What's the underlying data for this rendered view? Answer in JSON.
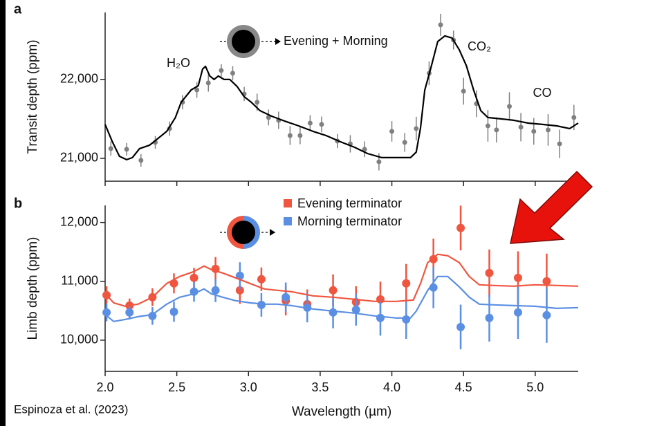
{
  "credit": "Espinoza et al. (2023)",
  "chart_data": [
    {
      "type": "scatter",
      "panel": "a",
      "ylabel": "Transit depth (ppm)",
      "xlim": [
        2.0,
        5.3
      ],
      "xticks": [
        2,
        2.5,
        3,
        3.5,
        4,
        4.5,
        5
      ],
      "ylim": [
        20710,
        22850
      ],
      "yticks": [
        {
          "value": 21000,
          "label": "21,000"
        },
        {
          "value": 22000,
          "label": "22,000"
        }
      ],
      "annotations": [
        "H₂O",
        "CO₂",
        "CO"
      ],
      "series": [
        {
          "name": "Evening + Morning",
          "color": "#808080",
          "model_color": "#000000",
          "x": [
            2.04,
            2.15,
            2.25,
            2.35,
            2.45,
            2.54,
            2.64,
            2.72,
            2.81,
            2.89,
            2.97,
            3.06,
            3.14,
            3.21,
            3.29,
            3.36,
            3.43,
            3.51,
            3.62,
            3.71,
            3.81,
            3.91,
            4.0,
            4.09,
            4.17,
            4.26,
            4.34,
            4.43,
            4.5,
            4.59,
            4.67,
            4.73,
            4.82,
            4.9,
            4.99,
            5.09,
            5.17,
            5.27
          ],
          "values": [
            21123,
            21114,
            20974,
            21202,
            21377,
            21711,
            21868,
            21956,
            22114,
            22079,
            21816,
            21711,
            21518,
            21482,
            21289,
            21289,
            21447,
            21430,
            21219,
            21184,
            21114,
            20956,
            21342,
            21202,
            21377,
            22079,
            22693,
            22500,
            21851,
            21693,
            21412,
            21360,
            21658,
            21395,
            21342,
            21360,
            21184,
            21518
          ],
          "errors": [
            90,
            80,
            80,
            80,
            90,
            90,
            100,
            110,
            80,
            90,
            90,
            110,
            100,
            110,
            120,
            110,
            100,
            100,
            90,
            110,
            100,
            110,
            130,
            120,
            150,
            150,
            140,
            120,
            170,
            170,
            200,
            160,
            180,
            180,
            170,
            200,
            180,
            160
          ],
          "model_x": [
            2.0,
            2.05,
            2.1,
            2.15,
            2.19,
            2.24,
            2.31,
            2.37,
            2.43,
            2.49,
            2.53,
            2.6,
            2.65,
            2.68,
            2.7,
            2.73,
            2.76,
            2.79,
            2.83,
            2.87,
            2.92,
            2.97,
            3.02,
            3.08,
            3.16,
            3.25,
            3.35,
            3.45,
            3.54,
            3.64,
            3.74,
            3.83,
            3.93,
            4.03,
            4.13,
            4.17,
            4.2,
            4.23,
            4.27,
            4.32,
            4.37,
            4.42,
            4.47,
            4.52,
            4.57,
            4.62,
            4.67,
            4.76,
            4.85,
            4.95,
            5.05,
            5.15,
            5.24,
            5.3
          ],
          "model_values": [
            21430,
            21211,
            21026,
            20983,
            21009,
            21123,
            21167,
            21254,
            21342,
            21518,
            21711,
            21868,
            21921,
            22132,
            22167,
            22044,
            22000,
            22044,
            22000,
            22000,
            21912,
            21781,
            21711,
            21605,
            21535,
            21474,
            21412,
            21342,
            21290,
            21211,
            21140,
            21061,
            21009,
            21009,
            21009,
            21079,
            21386,
            21868,
            22132,
            22482,
            22553,
            22526,
            22377,
            22175,
            21868,
            21605,
            21518,
            21500,
            21483,
            21447,
            21430,
            21412,
            21377,
            21447
          ]
        }
      ]
    },
    {
      "type": "scatter",
      "panel": "b",
      "ylabel": "Limb depth (ppm)",
      "xlabel": "Wavelength (µm)",
      "xlim": [
        2.0,
        5.3
      ],
      "xticks": [
        {
          "value": 2,
          "label": "2.0"
        },
        2.5,
        {
          "value": 3,
          "label": "3.0"
        },
        3.5,
        {
          "value": 4,
          "label": "4.0"
        },
        4.5,
        {
          "value": 5,
          "label": "5.0"
        }
      ],
      "ylim": [
        9470,
        12290
      ],
      "yticks": [
        {
          "value": 10000,
          "label": "10,000"
        },
        {
          "value": 11000,
          "label": "11,000"
        },
        {
          "value": 12000,
          "label": "12,000"
        }
      ],
      "series": [
        {
          "name": "Evening terminator",
          "color": "#f0553f",
          "x": [
            2.01,
            2.17,
            2.33,
            2.48,
            2.62,
            2.77,
            2.94,
            3.09,
            3.26,
            3.41,
            3.59,
            3.75,
            3.92,
            4.1,
            4.29,
            4.48,
            4.68,
            4.88,
            5.08
          ],
          "values": [
            10765,
            10588,
            10730,
            10965,
            11059,
            11212,
            10847,
            11035,
            10671,
            10612,
            10847,
            10647,
            10694,
            10965,
            11376,
            11906,
            11141,
            11059,
            11000
          ],
          "errors": [
            150,
            120,
            150,
            170,
            170,
            200,
            230,
            200,
            250,
            250,
            270,
            270,
            300,
            330,
            350,
            380,
            400,
            450,
            470
          ],
          "model_x": [
            2.0,
            2.06,
            2.14,
            2.23,
            2.33,
            2.43,
            2.52,
            2.62,
            2.69,
            2.74,
            2.82,
            2.91,
            3.01,
            3.11,
            3.2,
            3.3,
            3.45,
            3.59,
            3.74,
            3.88,
            4.03,
            4.15,
            4.2,
            4.25,
            4.32,
            4.39,
            4.47,
            4.54,
            4.61,
            4.71,
            4.85,
            5.0,
            5.15,
            5.3
          ],
          "model_values": [
            10788,
            10635,
            10577,
            10612,
            10730,
            10965,
            11082,
            11165,
            11259,
            11200,
            11141,
            11059,
            10965,
            10871,
            10847,
            10824,
            10753,
            10730,
            10694,
            10659,
            10659,
            10682,
            10965,
            11318,
            11459,
            11435,
            11318,
            11082,
            10941,
            10929,
            10918,
            10941,
            10929,
            10918
          ]
        },
        {
          "name": "Morning terminator",
          "color": "#5b8fe3",
          "x": [
            2.01,
            2.17,
            2.33,
            2.48,
            2.62,
            2.77,
            2.94,
            3.09,
            3.26,
            3.41,
            3.59,
            3.75,
            3.92,
            4.1,
            4.29,
            4.48,
            4.68,
            4.88,
            5.08
          ],
          "values": [
            10471,
            10471,
            10412,
            10482,
            10824,
            10847,
            11094,
            10600,
            10730,
            10553,
            10471,
            10518,
            10377,
            10353,
            10894,
            10224,
            10377,
            10471,
            10424
          ],
          "errors": [
            150,
            120,
            150,
            170,
            170,
            200,
            230,
            200,
            250,
            250,
            270,
            270,
            300,
            330,
            350,
            380,
            400,
            450,
            470
          ],
          "model_x": [
            2.0,
            2.06,
            2.14,
            2.23,
            2.33,
            2.43,
            2.52,
            2.62,
            2.69,
            2.74,
            2.82,
            2.91,
            3.01,
            3.11,
            3.2,
            3.3,
            3.45,
            3.59,
            3.74,
            3.88,
            4.03,
            4.13,
            4.17,
            4.25,
            4.32,
            4.39,
            4.47,
            4.54,
            4.61,
            4.71,
            4.85,
            5.0,
            5.15,
            5.3
          ],
          "model_values": [
            10435,
            10318,
            10353,
            10400,
            10435,
            10612,
            10730,
            10788,
            10871,
            10788,
            10730,
            10671,
            10635,
            10612,
            10612,
            10588,
            10530,
            10494,
            10459,
            10412,
            10377,
            10377,
            10494,
            10847,
            11082,
            11082,
            10906,
            10730,
            10612,
            10600,
            10588,
            10576,
            10541,
            10553
          ]
        }
      ]
    }
  ]
}
